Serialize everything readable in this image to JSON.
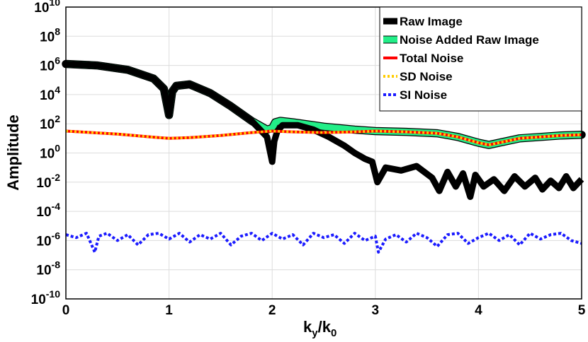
{
  "chart_data": {
    "type": "line",
    "title": "",
    "xlabel": "k",
    "xlabel_sub_y": "y",
    "xlabel_sep": "/k",
    "xlabel_sub_0": "0",
    "ylabel": "Amplitude",
    "xlim": [
      0,
      5
    ],
    "ylim_log10": [
      -10,
      10
    ],
    "yscale": "log",
    "grid": true,
    "legend_position": "top-right",
    "x_ticks": [
      0,
      1,
      2,
      3,
      4,
      5
    ],
    "x_tick_labels": [
      "0",
      "1",
      "2",
      "3",
      "4",
      "5"
    ],
    "y_tick_exponents": [
      10,
      8,
      6,
      4,
      2,
      0,
      -2,
      -4,
      -6,
      -8,
      -10
    ],
    "y_tick_base": "10",
    "y_tick_exp_labels": [
      "10",
      "8",
      "6",
      "4",
      "2",
      "0",
      "-2",
      "-4",
      "-6",
      "-8",
      "-10"
    ],
    "series": [
      {
        "name": "Raw Image",
        "color": "#000000",
        "style": "solid-thick",
        "x": [
          0,
          0.3,
          0.6,
          0.85,
          0.95,
          1.0,
          1.03,
          1.07,
          1.2,
          1.4,
          1.6,
          1.8,
          1.95,
          2.0,
          2.02,
          2.05,
          2.1,
          2.25,
          2.4,
          2.55,
          2.7,
          2.8,
          2.9,
          2.97,
          3.02,
          3.1,
          3.25,
          3.4,
          3.55,
          3.62,
          3.7,
          3.78,
          3.85,
          3.92,
          3.97,
          4.05,
          4.15,
          4.25,
          4.35,
          4.45,
          4.55,
          4.62,
          4.7,
          4.78,
          4.85,
          4.92,
          5.0
        ],
        "log10_y": [
          6.1,
          6.0,
          5.7,
          5.1,
          4.4,
          2.6,
          4.2,
          4.6,
          4.7,
          4.1,
          3.2,
          2.2,
          1.1,
          -0.6,
          0.8,
          1.5,
          1.9,
          1.9,
          1.6,
          1.1,
          0.5,
          0.0,
          -0.4,
          -0.6,
          -2.0,
          -1.0,
          -1.2,
          -0.9,
          -1.7,
          -2.6,
          -1.3,
          -2.3,
          -1.4,
          -3.0,
          -1.5,
          -2.3,
          -1.8,
          -2.6,
          -1.6,
          -2.3,
          -1.7,
          -2.5,
          -1.9,
          -2.4,
          -1.6,
          -2.4,
          -1.8
        ]
      },
      {
        "name": "Noise Added Raw Image",
        "color": "#22ee88",
        "style": "solid-thick",
        "x": [
          0,
          0.3,
          0.6,
          0.85,
          0.95,
          1.0,
          1.03,
          1.07,
          1.2,
          1.4,
          1.6,
          1.8,
          1.95,
          2.0,
          2.03,
          2.08,
          2.2,
          2.5,
          2.8,
          3.0,
          3.3,
          3.6,
          3.8,
          4.0,
          4.1,
          4.2,
          4.4,
          4.6,
          4.8,
          5.0
        ],
        "log10_y": [
          6.1,
          6.0,
          5.7,
          5.1,
          4.4,
          2.6,
          4.2,
          4.6,
          4.7,
          4.1,
          3.2,
          2.2,
          1.6,
          1.7,
          2.1,
          2.2,
          2.1,
          1.8,
          1.6,
          1.5,
          1.45,
          1.35,
          1.1,
          0.7,
          0.55,
          0.7,
          1.0,
          1.1,
          1.2,
          1.25
        ]
      },
      {
        "name": "Total Noise",
        "color": "#ff0000",
        "style": "solid",
        "x": [
          0,
          0.5,
          0.9,
          1.0,
          1.2,
          1.5,
          1.8,
          2.0,
          2.2,
          2.5,
          2.8,
          3.0,
          3.3,
          3.6,
          3.8,
          4.0,
          4.1,
          4.2,
          4.4,
          4.6,
          4.8,
          5.0
        ],
        "log10_y": [
          1.5,
          1.3,
          1.05,
          1.0,
          1.05,
          1.2,
          1.4,
          1.5,
          1.45,
          1.4,
          1.45,
          1.5,
          1.45,
          1.35,
          1.1,
          0.7,
          0.55,
          0.7,
          1.0,
          1.1,
          1.2,
          1.25
        ]
      },
      {
        "name": "SD Noise",
        "color": "#ffcc00",
        "style": "dotted",
        "x": [
          0,
          0.5,
          0.9,
          1.0,
          1.2,
          1.5,
          1.8,
          2.0,
          2.2,
          2.5,
          2.8,
          3.0,
          3.3,
          3.6,
          3.8,
          4.0,
          4.1,
          4.2,
          4.4,
          4.6,
          4.8,
          5.0
        ],
        "log10_y": [
          1.5,
          1.3,
          1.05,
          1.0,
          1.05,
          1.2,
          1.4,
          1.5,
          1.45,
          1.4,
          1.45,
          1.5,
          1.45,
          1.35,
          1.1,
          0.7,
          0.55,
          0.7,
          1.0,
          1.1,
          1.2,
          1.25
        ]
      },
      {
        "name": "SI Noise",
        "color": "#1a1aff",
        "style": "dotted",
        "x": [
          0,
          0.1,
          0.2,
          0.28,
          0.32,
          0.4,
          0.5,
          0.6,
          0.7,
          0.8,
          0.9,
          1.0,
          1.1,
          1.2,
          1.3,
          1.4,
          1.5,
          1.6,
          1.7,
          1.8,
          1.9,
          2.0,
          2.1,
          2.2,
          2.3,
          2.4,
          2.5,
          2.6,
          2.7,
          2.8,
          2.9,
          3.0,
          3.03,
          3.1,
          3.2,
          3.3,
          3.4,
          3.5,
          3.6,
          3.7,
          3.8,
          3.9,
          4.0,
          4.1,
          4.2,
          4.3,
          4.4,
          4.5,
          4.6,
          4.7,
          4.8,
          4.9,
          5.0
        ],
        "log10_y": [
          -5.6,
          -5.8,
          -5.5,
          -6.8,
          -5.7,
          -5.5,
          -6.0,
          -5.6,
          -6.3,
          -5.6,
          -5.5,
          -5.9,
          -5.5,
          -6.1,
          -5.6,
          -5.9,
          -5.5,
          -6.3,
          -5.7,
          -5.5,
          -6.0,
          -5.5,
          -5.9,
          -5.6,
          -6.3,
          -5.5,
          -5.8,
          -5.6,
          -6.2,
          -5.5,
          -6.0,
          -5.7,
          -6.8,
          -5.9,
          -5.6,
          -6.1,
          -5.5,
          -5.8,
          -6.4,
          -5.6,
          -5.5,
          -6.2,
          -5.8,
          -5.5,
          -6.0,
          -5.6,
          -6.3,
          -5.5,
          -5.9,
          -5.6,
          -5.5,
          -6.0,
          -6.2
        ]
      }
    ]
  }
}
